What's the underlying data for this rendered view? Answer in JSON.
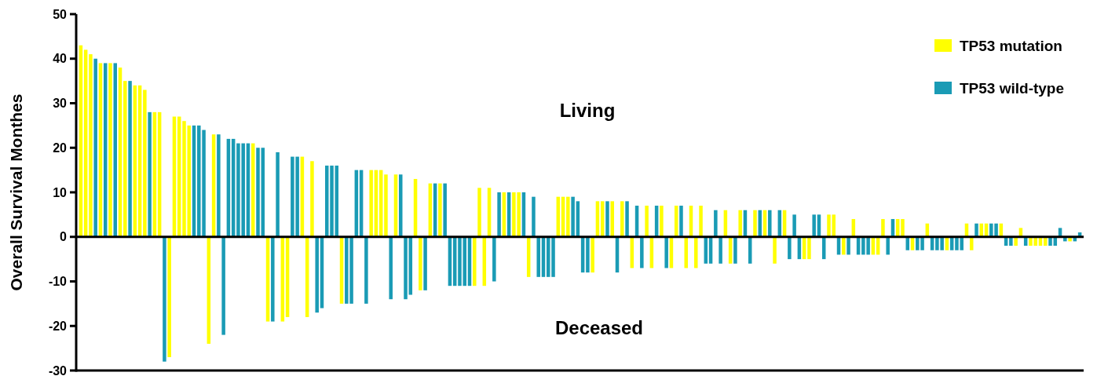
{
  "chart_data": {
    "type": "bar",
    "ylabel": "Overall Survival Monthes",
    "annotations": [
      "Living",
      "Deceased"
    ],
    "categories": [
      null,
      null,
      null,
      null,
      null,
      null,
      null,
      null,
      null,
      null,
      null,
      null,
      null,
      null,
      null,
      null,
      null,
      null,
      null,
      null,
      null,
      null,
      null,
      null,
      null,
      null,
      null,
      null,
      null,
      null,
      null,
      null,
      null,
      null,
      null,
      null,
      null,
      null,
      null,
      null,
      null,
      null,
      null,
      null,
      null,
      null,
      null,
      null,
      null,
      null,
      null,
      null,
      null,
      null,
      null,
      null,
      null,
      null,
      null,
      null,
      null,
      null,
      null,
      null,
      null,
      null,
      null,
      null,
      null,
      null,
      null,
      null,
      null,
      null,
      null,
      null,
      null,
      null,
      null,
      null,
      null,
      null,
      null,
      null,
      null,
      null,
      null,
      null,
      null,
      null,
      null,
      null,
      null,
      null,
      null,
      null,
      null,
      null,
      null,
      null,
      null,
      null,
      null,
      null,
      null,
      null,
      null,
      null,
      null,
      null,
      null,
      null,
      null,
      null,
      null,
      null,
      null,
      null,
      null,
      null,
      null,
      null,
      null,
      null,
      null,
      null,
      null,
      null,
      null,
      null,
      null,
      null,
      null,
      null,
      null,
      null,
      null,
      null,
      null,
      null,
      null,
      null,
      null,
      null,
      null,
      null,
      null,
      null,
      null,
      null,
      null,
      null,
      null,
      null,
      null,
      null,
      null,
      null,
      null,
      null,
      null,
      null,
      null,
      null,
      null,
      null,
      null,
      null,
      null,
      null,
      null,
      null,
      null,
      null,
      null,
      null,
      null,
      null,
      null,
      null,
      null,
      null,
      null,
      null,
      null,
      null,
      null,
      null,
      null,
      null,
      null,
      null,
      null,
      null,
      null,
      null,
      null,
      null,
      null,
      null,
      null,
      null,
      null,
      null
    ],
    "series": [
      {
        "name": "TP53 mutation",
        "color": "#ffff00",
        "values": [
          43,
          42,
          41,
          null,
          39,
          null,
          39,
          null,
          38,
          35,
          null,
          34,
          34,
          33,
          null,
          28,
          28,
          null,
          -27,
          27,
          27,
          26,
          25,
          null,
          null,
          null,
          -24,
          23,
          null,
          null,
          null,
          null,
          null,
          null,
          null,
          21,
          null,
          null,
          -19,
          null,
          null,
          -19,
          -18,
          null,
          null,
          18,
          -18,
          17,
          null,
          null,
          null,
          null,
          null,
          -15,
          null,
          null,
          null,
          null,
          null,
          15,
          15,
          15,
          14,
          null,
          14,
          null,
          null,
          null,
          13,
          -12,
          null,
          12,
          null,
          12,
          null,
          null,
          null,
          null,
          null,
          null,
          -11,
          11,
          -11,
          11,
          null,
          null,
          10,
          null,
          10,
          10,
          null,
          -9,
          null,
          null,
          null,
          null,
          null,
          9,
          9,
          9,
          null,
          null,
          null,
          null,
          -8,
          8,
          8,
          null,
          8,
          null,
          8,
          null,
          -7,
          null,
          null,
          7,
          -7,
          null,
          7,
          null,
          -7,
          7,
          null,
          -7,
          7,
          -7,
          7,
          null,
          null,
          null,
          null,
          6,
          -6,
          null,
          6,
          null,
          null,
          6,
          null,
          6,
          null,
          -6,
          null,
          6,
          null,
          null,
          null,
          -5,
          -5,
          null,
          null,
          null,
          5,
          5,
          null,
          -4,
          null,
          4,
          null,
          null,
          null,
          -4,
          -4,
          4,
          null,
          null,
          4,
          4,
          null,
          -3,
          null,
          null,
          3,
          null,
          null,
          null,
          -3,
          null,
          null,
          null,
          3,
          -3,
          null,
          3,
          3,
          null,
          null,
          3,
          null,
          null,
          -2,
          2,
          null,
          -2,
          -2,
          -2,
          -2,
          null,
          null,
          null,
          null,
          -1,
          null,
          null
        ]
      },
      {
        "name": "TP53 wild-type",
        "color": "#1a9bb5",
        "values": [
          null,
          null,
          null,
          40,
          null,
          39,
          null,
          39,
          null,
          null,
          35,
          null,
          null,
          null,
          28,
          null,
          null,
          -28,
          null,
          null,
          null,
          null,
          null,
          25,
          25,
          24,
          null,
          null,
          23,
          -22,
          22,
          22,
          21,
          21,
          21,
          null,
          20,
          20,
          null,
          -19,
          19,
          null,
          null,
          18,
          18,
          null,
          null,
          null,
          -17,
          -16,
          16,
          16,
          16,
          null,
          -15,
          -15,
          15,
          15,
          -15,
          null,
          null,
          null,
          null,
          -14,
          null,
          14,
          -14,
          -13,
          null,
          null,
          -12,
          null,
          12,
          null,
          12,
          -11,
          -11,
          -11,
          -11,
          -11,
          null,
          null,
          null,
          null,
          -10,
          10,
          null,
          10,
          null,
          null,
          10,
          null,
          9,
          -9,
          -9,
          -9,
          -9,
          null,
          null,
          null,
          9,
          8,
          -8,
          -8,
          null,
          null,
          null,
          8,
          null,
          -8,
          null,
          8,
          null,
          7,
          -7,
          null,
          null,
          7,
          null,
          -7,
          null,
          null,
          7,
          null,
          null,
          null,
          null,
          -6,
          -6,
          6,
          -6,
          null,
          null,
          -6,
          null,
          6,
          -6,
          null,
          6,
          null,
          6,
          null,
          6,
          null,
          -5,
          5,
          -5,
          null,
          null,
          5,
          5,
          -5,
          null,
          null,
          -4,
          null,
          -4,
          null,
          -4,
          -4,
          -4,
          null,
          null,
          null,
          -4,
          4,
          null,
          null,
          -3,
          null,
          -3,
          -3,
          null,
          -3,
          -3,
          -3,
          null,
          -3,
          -3,
          -3,
          null,
          null,
          3,
          null,
          null,
          3,
          3,
          null,
          -2,
          -2,
          null,
          null,
          -2,
          null,
          null,
          null,
          null,
          -2,
          -2,
          2,
          -1,
          null,
          -1,
          1
        ]
      }
    ],
    "ylim": [
      -30,
      50
    ],
    "yticks": [
      -30,
      -20,
      -10,
      0,
      10,
      20,
      30,
      40,
      50
    ],
    "legend": "top right"
  }
}
